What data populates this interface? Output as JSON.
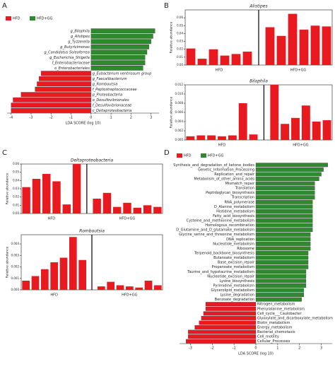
{
  "chart_data": [
    {
      "type": "lda",
      "panel": "A",
      "xlabel": "LDA SCORE (log 10)",
      "xlim": [
        -4.2,
        3.4
      ],
      "xticks": [
        -4,
        -3,
        -2,
        -1,
        0,
        1,
        2,
        3
      ],
      "series": [
        {
          "name": "HFD",
          "color": "#e8191f",
          "categories": [
            "g_Eubacterium ventriosum group",
            "g_Faecalibacterium",
            "g_Romboutsia",
            "f_Peptostreptococcaceae",
            "p_Proteobacteria",
            "o_Desulfovibrionales",
            "f_Desulfovibrionaceae",
            "c_Deltaproteobacteria"
          ],
          "values": [
            -2.5,
            -2.6,
            -2.7,
            -2.8,
            -3.5,
            -3.9,
            -4.0,
            -4.0
          ]
        },
        {
          "name": "HFD+GG",
          "color": "#2f8a2f",
          "categories": [
            "g_Bilophila",
            "g_Alistipes",
            "g_Tyzzerella",
            "g_Butyricimonas",
            "g_Candidatus Soleaferrea",
            "g_Escherichia_Shigella",
            "f_Enterobacteriaceae",
            "o_Enterobacteriales"
          ],
          "values": [
            3.2,
            3.1,
            3.0,
            2.9,
            2.8,
            2.7,
            2.7,
            2.6
          ]
        }
      ]
    },
    {
      "type": "bar",
      "panel": "B",
      "title": "Alistipes",
      "ylabel": "Relative abundance",
      "ylim": [
        0,
        0.07
      ],
      "yticks": [
        {
          "value": 0,
          "label": "0.00"
        },
        {
          "value": 0.01,
          "label": "0.01"
        },
        {
          "value": 0.02,
          "label": "0.02"
        },
        {
          "value": 0.03,
          "label": "0.03"
        },
        {
          "value": 0.04,
          "label": "0.04"
        },
        {
          "value": 0.05,
          "label": "0.05"
        },
        {
          "value": 0.06,
          "label": "0.06"
        }
      ],
      "series": [
        {
          "name": "HFD",
          "color": "#e8191f",
          "values": [
            0.021,
            0.008,
            0.02,
            0.012,
            0.014,
            0.017
          ]
        },
        {
          "name": "HFD+GG",
          "color": "#e8191f",
          "values": [
            0.048,
            0.037,
            0.065,
            0.045,
            0.05,
            0.049
          ]
        }
      ]
    },
    {
      "type": "bar",
      "title": "Bilophila",
      "ylabel": "Relative abundance",
      "ylim": [
        0,
        0.012
      ],
      "yticks": [
        {
          "value": 0,
          "label": "0.000"
        },
        {
          "value": 0.002,
          "label": "0.002"
        },
        {
          "value": 0.004,
          "label": "0.004"
        },
        {
          "value": 0.006,
          "label": "0.006"
        },
        {
          "value": 0.008,
          "label": "0.008"
        },
        {
          "value": 0.01,
          "label": "0.010"
        },
        {
          "value": 0.012,
          "label": "0.012"
        }
      ],
      "series": [
        {
          "name": "HFD",
          "color": "#e8191f",
          "values": [
            0.0008,
            0.001,
            0.001,
            0.0008,
            0.001,
            0.008,
            0.0012
          ]
        },
        {
          "name": "HFD+GG",
          "color": "#e8191f",
          "values": [
            0.012,
            0.0035,
            0.0048,
            0.0075,
            0.004,
            0.0043
          ]
        }
      ]
    },
    {
      "type": "bar",
      "panel": "C",
      "title": "Deltaproteobacteria",
      "ylabel": "Relative abundance",
      "ylim": [
        0,
        0.06
      ],
      "yticks": [
        {
          "value": 0,
          "label": "0.00"
        },
        {
          "value": 0.01,
          "label": "0.01"
        },
        {
          "value": 0.02,
          "label": "0.02"
        },
        {
          "value": 0.03,
          "label": "0.03"
        },
        {
          "value": 0.04,
          "label": "0.04"
        },
        {
          "value": 0.05,
          "label": "0.05"
        },
        {
          "value": 0.06,
          "label": "0.06"
        }
      ],
      "series": [
        {
          "name": "HFD",
          "color": "#e8191f",
          "values": [
            0.032,
            0.042,
            0.048,
            0.039,
            0.011,
            0.06
          ]
        },
        {
          "name": "HFD+GG",
          "color": "#e8191f",
          "values": [
            0.018,
            0.025,
            0.008,
            0.013,
            0.007,
            0.01,
            0.008
          ]
        }
      ]
    },
    {
      "type": "bar",
      "title": "Romboutsia",
      "ylabel": "Relative abundance",
      "ylim": [
        0,
        0.0048
      ],
      "yticks": [
        {
          "value": 0,
          "label": "0.000"
        },
        {
          "value": 0.001,
          "label": "0.001"
        },
        {
          "value": 0.002,
          "label": "0.002"
        },
        {
          "value": 0.003,
          "label": "0.003"
        },
        {
          "value": 0.004,
          "label": "0.004"
        }
      ],
      "series": [
        {
          "name": "HFD",
          "color": "#e8191f",
          "values": [
            0.0008,
            0.0012,
            0.0018,
            0.0024,
            0.0028,
            0.0046,
            0.0026
          ]
        },
        {
          "name": "HFD+GG",
          "color": "#e8191f",
          "values": [
            0.0003,
            0.0007,
            0.0004,
            0.0003,
            0.0002,
            0.0008,
            0.0004
          ]
        }
      ]
    },
    {
      "type": "lda",
      "panel": "D",
      "xlabel": "LDA SCORE (log 10)",
      "xlim": [
        -3.5,
        3.5
      ],
      "xticks": [
        -3,
        -2,
        -1,
        0,
        1,
        2,
        3
      ],
      "series": [
        {
          "name": "HFD",
          "color": "#e8191f",
          "categories": [
            "Nitrogen_metabolism",
            "Phenylalanine_metabolism",
            "Cell_cycle___Caulobacter",
            "Glyoxylate_and_dicarboxylate_metabolism",
            "Biotin_metabolism",
            "Energy_metabolism",
            "Bacterial_chemotaxis",
            "Cell_motility",
            "Cellular_Processes"
          ],
          "values": [
            -2.3,
            -2.3,
            -2.4,
            -2.5,
            -2.6,
            -2.8,
            -3.1,
            -3.1,
            -3.2
          ]
        },
        {
          "name": "HFD+GG",
          "color": "#2f8a2f",
          "categories": [
            "Synthesis_and_degradation_of_ketone_bodies",
            "Genetic_Information_Processing",
            "Replication_and_repair",
            "Metabolism_of_other_amino_acids",
            "Mismatch_repair",
            "Translation",
            "Peptidoglycan_biosynthesis",
            "Transcription",
            "RNA_polymerase",
            "D_Alanine_metabolism",
            "Histidine_metabolism",
            "Fatty_acid_biosynthesis",
            "Cysteine_and_methionine_metabolism",
            "Homologous_recombination",
            "D_Glutamine_and_D_glutamate_metabolism",
            "Glycine_serine_and_threonine_metabolism",
            "DNA_replication",
            "Nucleotide_metabolism",
            "Ribosome",
            "Terpenoid_backbone_biosynthesis",
            "Butanoate_metabolism",
            "Base_excision_repair",
            "Propanoate_metabolism",
            "Taurine_and_hypotaurine_metabolism",
            "Nucleotide_excision_repair",
            "Lysine_biosynthesis",
            "Pyrimidine_metabolism",
            "Glycerolipid_metabolism",
            "Lysine_degradation",
            "Benzoate_degradation"
          ],
          "values": [
            3.3,
            3.1,
            3.0,
            2.9,
            2.7,
            2.7,
            2.7,
            2.7,
            2.6,
            2.6,
            2.6,
            2.6,
            2.6,
            2.6,
            2.6,
            2.5,
            2.5,
            2.5,
            2.5,
            2.4,
            2.4,
            2.4,
            2.4,
            2.3,
            2.3,
            2.3,
            2.3,
            2.2,
            2.2,
            2.1
          ]
        }
      ]
    }
  ]
}
